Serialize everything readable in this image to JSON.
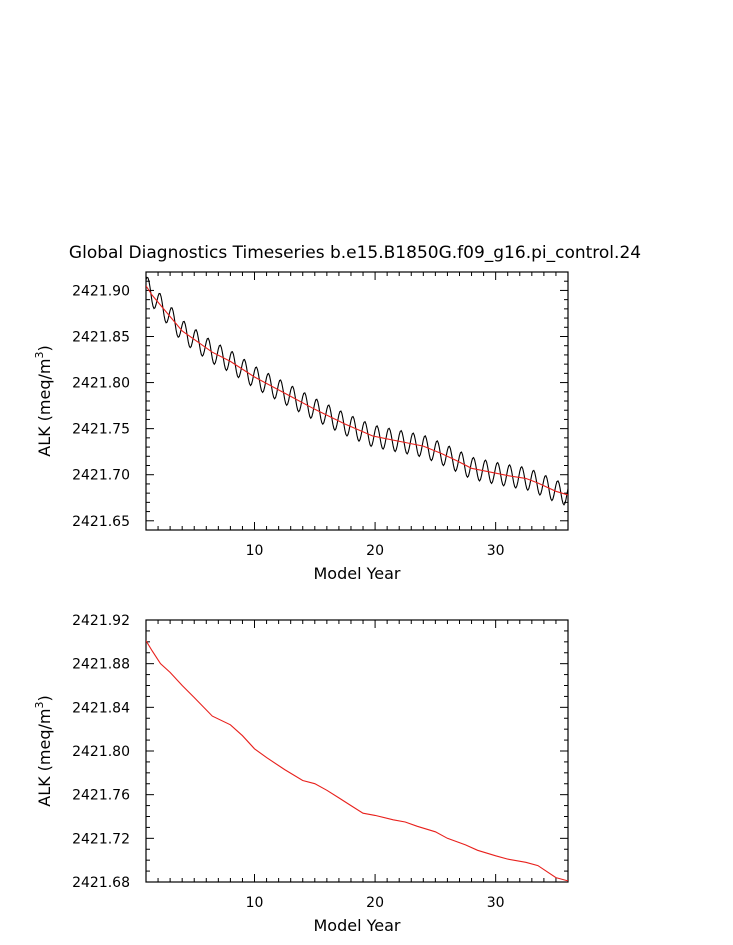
{
  "title": "Global Diagnostics Timeseries b.e15.B1850G.f09_g16.pi_control.24",
  "colors": {
    "raw": "#000000",
    "smoothed": "#e8201c",
    "axis": "#000000"
  },
  "chart_data": [
    {
      "type": "line",
      "xlabel": "Model Year",
      "ylabel": "ALK (meq/m3)",
      "ylabel_main": "ALK (meq/m",
      "ylabel_sup": "3",
      "ylabel_end": ")",
      "xlim": [
        1,
        36
      ],
      "ylim": [
        2421.64,
        2421.92
      ],
      "xticks": [
        10,
        20,
        30
      ],
      "yticks": [
        2421.65,
        2421.7,
        2421.75,
        2421.8,
        2421.85,
        2421.9
      ],
      "ytick_labels": [
        "2421.65",
        "2421.70",
        "2421.75",
        "2421.80",
        "2421.85",
        "2421.90"
      ],
      "series": [
        {
          "style": "monthly-oscillating",
          "color": "#000000",
          "seasonal_amplitude": 0.012,
          "trend_x": [
            1,
            1.5,
            4,
            6.5,
            8,
            10,
            13,
            15,
            17.5,
            19.8,
            22.5,
            24,
            25.5,
            26.8,
            28,
            31,
            32.5,
            33.5,
            35,
            36
          ],
          "trend_y": [
            2421.905,
            2421.895,
            2421.856,
            2421.833,
            2421.823,
            2421.806,
            2421.785,
            2421.771,
            2421.755,
            2421.742,
            2421.735,
            2421.731,
            2421.723,
            2421.715,
            2421.707,
            2421.699,
            2421.696,
            2421.691,
            2421.682,
            2421.678
          ]
        },
        {
          "style": "smoothed",
          "color": "#e8201c",
          "x": [
            1,
            1.5,
            4,
            6.5,
            8,
            10,
            13,
            15,
            17.5,
            19.8,
            22.5,
            24,
            25.5,
            26.8,
            28,
            31,
            32.5,
            33.5,
            35,
            36
          ],
          "y": [
            2421.905,
            2421.895,
            2421.856,
            2421.833,
            2421.823,
            2421.806,
            2421.785,
            2421.771,
            2421.755,
            2421.742,
            2421.735,
            2421.731,
            2421.723,
            2421.715,
            2421.707,
            2421.699,
            2421.696,
            2421.691,
            2421.682,
            2421.678
          ]
        }
      ]
    },
    {
      "type": "line",
      "xlabel": "Model Year",
      "ylabel": "ALK (meq/m3)",
      "ylabel_main": "ALK (meq/m",
      "ylabel_sup": "3",
      "ylabel_end": ")",
      "xlim": [
        1,
        36
      ],
      "ylim": [
        2421.68,
        2421.92
      ],
      "xticks": [
        10,
        20,
        30
      ],
      "yticks": [
        2421.68,
        2421.72,
        2421.76,
        2421.8,
        2421.84,
        2421.88,
        2421.92
      ],
      "ytick_labels": [
        "2421.68",
        "2421.72",
        "2421.76",
        "2421.80",
        "2421.84",
        "2421.88",
        "2421.92"
      ],
      "series": [
        {
          "style": "smoothed",
          "color": "#e8201c",
          "x": [
            1,
            1.5,
            2.2,
            3,
            4,
            5,
            6.5,
            8,
            9,
            10,
            11,
            12.5,
            14,
            15,
            16,
            17,
            18,
            19,
            20,
            21.5,
            22.5,
            23.5,
            25,
            26,
            27.5,
            28.5,
            30,
            31,
            32.5,
            33.5,
            35,
            36
          ],
          "y": [
            2421.901,
            2421.892,
            2421.88,
            2421.872,
            2421.86,
            2421.849,
            2421.832,
            2421.824,
            2421.814,
            2421.802,
            2421.794,
            2421.783,
            2421.773,
            2421.77,
            2421.764,
            2421.757,
            2421.75,
            2421.743,
            2421.741,
            2421.737,
            2421.735,
            2421.731,
            2421.726,
            2421.72,
            2421.714,
            2421.709,
            2421.704,
            2421.701,
            2421.698,
            2421.695,
            2421.684,
            2421.681
          ]
        }
      ]
    }
  ]
}
